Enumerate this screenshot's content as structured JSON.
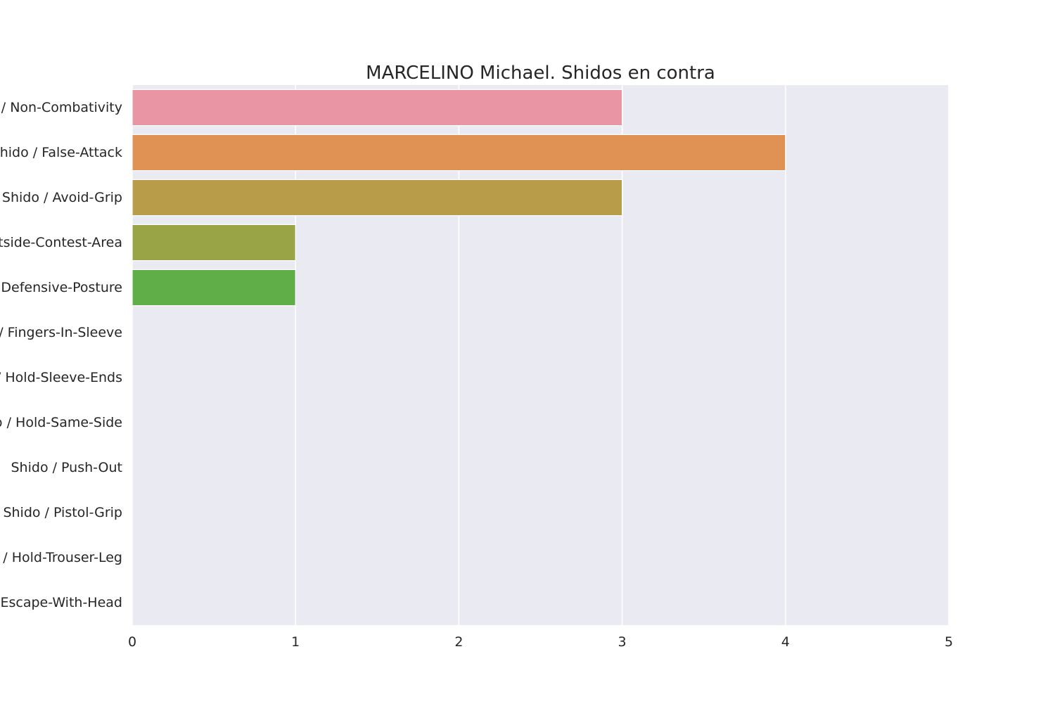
{
  "chart_data": {
    "type": "bar",
    "orientation": "horizontal",
    "title": "MARCELINO Michael. Shidos en contra",
    "xlabel": "",
    "ylabel": "",
    "xlim": [
      0,
      5
    ],
    "xticks": [
      0,
      1,
      2,
      3,
      4,
      5
    ],
    "grid": true,
    "legend": "none",
    "background_color": "#eaeaf2",
    "grid_color": "#ffffff",
    "categories": [
      "Shido / Non-Combativity",
      "Shido / False-Attack",
      "Shido / Avoid-Grip",
      "Shido / Outside-Contest-Area",
      "Shido / Defensive-Posture",
      "Shido / Fingers-In-Sleeve",
      "Shido / Hold-Sleeve-Ends",
      "Shido / Hold-Same-Side",
      "Shido / Push-Out",
      "Shido / Pistol-Grip",
      "Shido / Hold-Trouser-Leg",
      "Shido / Escape-With-Head"
    ],
    "values": [
      3,
      4,
      3,
      1,
      1,
      0,
      0,
      0,
      0,
      0,
      0,
      0
    ],
    "colors": [
      "#e995a3",
      "#e09254",
      "#b89c4a",
      "#99a446",
      "#60ae47",
      "#4eb06b",
      "#4fad98",
      "#53aab0",
      "#57a6c8",
      "#7f9ee6",
      "#b48fe6",
      "#e087d5"
    ]
  }
}
